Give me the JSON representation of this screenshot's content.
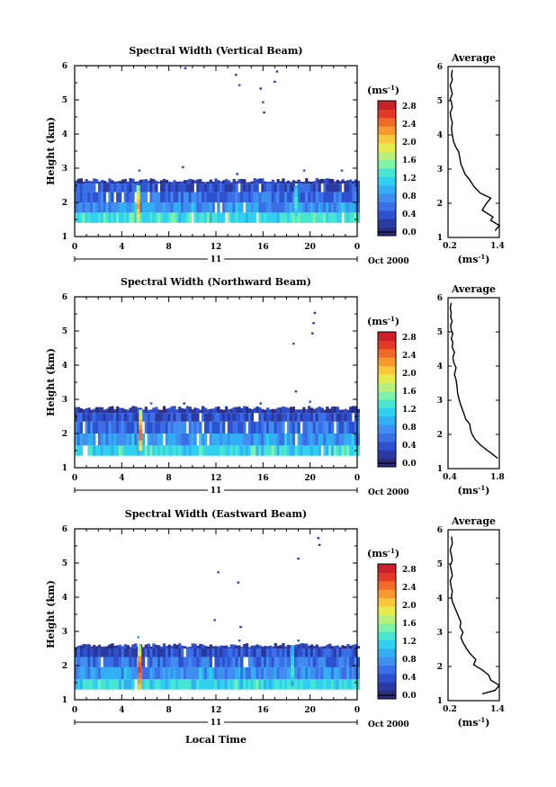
{
  "x_axis_label": "Local Time",
  "date_label": "Oct 2000",
  "day_label": "11",
  "colorbar_unit": "(ms",
  "unit_sup": "-1",
  "unit_close": ")",
  "average_title": "Average",
  "panels": [
    {
      "title": "Spectral Width (Vertical Beam)",
      "ylabel": "Height (km)",
      "cbar_ticks": [
        "2.8",
        "2.4",
        "2.0",
        "1.6",
        "1.2",
        "0.8",
        "0.4",
        "0.0"
      ],
      "avg_ticks": [
        "0.2",
        "1.4"
      ]
    },
    {
      "title": "Spectral Width (Northward Beam)",
      "ylabel": "Height (km)",
      "cbar_ticks": [
        "2.8",
        "2.4",
        "2.0",
        "1.6",
        "1.2",
        "0.8",
        "0.4",
        "0.0"
      ],
      "avg_ticks": [
        "0.4",
        "1.8"
      ]
    },
    {
      "title": "Spectral Width (Eastward Beam)",
      "ylabel": "Height (km)",
      "cbar_ticks": [
        "2.8",
        "2.4",
        "2.0",
        "1.6",
        "1.2",
        "0.8",
        "0.4",
        "0.0"
      ],
      "avg_ticks": [
        "0.2",
        "1.4"
      ]
    }
  ],
  "colors": {
    "scale": [
      "#2b2c7e",
      "#2b3aa0",
      "#2e52cf",
      "#3a6fe8",
      "#3f8ef0",
      "#32aef2",
      "#2fd0f0",
      "#46e6d2",
      "#7ff2a8",
      "#b7f07a",
      "#e7ec4d",
      "#f8c83a",
      "#f79a2e",
      "#f06a2a",
      "#e33a28",
      "#c9202a"
    ]
  },
  "chart_data": [
    {
      "type": "heatmap",
      "title": "Spectral Width (Vertical Beam)",
      "xlabel": "",
      "ylabel": "Height (km)",
      "xlim": [
        0,
        24
      ],
      "ylim": [
        1,
        6
      ],
      "x_ticks": [
        "0",
        "4",
        "8",
        "12",
        "16",
        "20",
        "0"
      ],
      "y_ticks": [
        "1",
        "2",
        "3",
        "4",
        "5",
        "6"
      ],
      "colorbar": {
        "label": "(ms-1)",
        "range": [
          0.0,
          3.0
        ],
        "ticks": [
          2.8,
          2.4,
          2.0,
          1.6,
          1.2,
          0.8,
          0.4,
          0.0
        ]
      },
      "layers": [
        {
          "height_km": [
            1.4,
            1.7
          ],
          "width_ms": 1.35
        },
        {
          "height_km": [
            1.7,
            2.0
          ],
          "width_ms": 0.9
        },
        {
          "height_km": [
            2.0,
            2.3
          ],
          "width_ms": 0.65
        },
        {
          "height_km": [
            2.3,
            2.55
          ],
          "width_ms": 0.45
        },
        {
          "height_km": [
            2.55,
            2.65
          ],
          "width_ms": 0.3
        }
      ],
      "spikes": [
        {
          "time_h": 5.4,
          "height_km": [
            1.4,
            2.5
          ],
          "width_ms": 2.3
        },
        {
          "time_h": 18.8,
          "height_km": [
            1.6,
            2.5
          ],
          "width_ms": 1.5
        }
      ],
      "isolated": [
        {
          "time_h": 9.4,
          "height_km": 5.9,
          "width_ms": 0.3
        },
        {
          "time_h": 13.7,
          "height_km": 5.7,
          "width_ms": 0.35
        },
        {
          "time_h": 14.0,
          "height_km": 5.4,
          "width_ms": 0.4
        },
        {
          "time_h": 15.8,
          "height_km": 5.3,
          "width_ms": 0.35
        },
        {
          "time_h": 16.0,
          "height_km": 4.9,
          "width_ms": 0.4
        },
        {
          "time_h": 16.1,
          "height_km": 4.6,
          "width_ms": 0.35
        },
        {
          "time_h": 17.0,
          "height_km": 5.5,
          "width_ms": 0.3
        },
        {
          "time_h": 17.2,
          "height_km": 5.8,
          "width_ms": 0.35
        },
        {
          "time_h": 5.5,
          "height_km": 2.9,
          "width_ms": 0.4
        },
        {
          "time_h": 9.2,
          "height_km": 3.0,
          "width_ms": 0.4
        },
        {
          "time_h": 13.8,
          "height_km": 2.8,
          "width_ms": 0.35
        },
        {
          "time_h": 19.5,
          "height_km": 2.9,
          "width_ms": 0.4
        },
        {
          "time_h": 22.7,
          "height_km": 2.9,
          "width_ms": 0.4
        }
      ]
    },
    {
      "type": "heatmap",
      "title": "Spectral Width (Northward Beam)",
      "xlabel": "",
      "ylabel": "Height (km)",
      "xlim": [
        0,
        24
      ],
      "ylim": [
        1,
        6
      ],
      "x_ticks": [
        "0",
        "4",
        "8",
        "12",
        "16",
        "20",
        "0"
      ],
      "y_ticks": [
        "1",
        "2",
        "3",
        "4",
        "5",
        "6"
      ],
      "colorbar": {
        "label": "(ms-1)",
        "range": [
          0.0,
          3.0
        ],
        "ticks": [
          2.8,
          2.4,
          2.0,
          1.6,
          1.2,
          0.8,
          0.4,
          0.0
        ]
      },
      "layers": [
        {
          "height_km": [
            1.35,
            1.65
          ],
          "width_ms": 1.3
        },
        {
          "height_km": [
            1.65,
            2.0
          ],
          "width_ms": 0.9
        },
        {
          "height_km": [
            2.0,
            2.35
          ],
          "width_ms": 0.65
        },
        {
          "height_km": [
            2.35,
            2.6
          ],
          "width_ms": 0.45
        },
        {
          "height_km": [
            2.6,
            2.75
          ],
          "width_ms": 0.3
        }
      ],
      "spikes": [
        {
          "time_h": 5.6,
          "height_km": [
            1.5,
            2.7
          ],
          "width_ms": 2.6
        }
      ],
      "isolated": [
        {
          "time_h": 20.4,
          "height_km": 5.5,
          "width_ms": 0.3
        },
        {
          "time_h": 20.3,
          "height_km": 5.2,
          "width_ms": 0.35
        },
        {
          "time_h": 20.2,
          "height_km": 4.9,
          "width_ms": 0.3
        },
        {
          "time_h": 18.6,
          "height_km": 4.6,
          "width_ms": 0.4
        },
        {
          "time_h": 18.8,
          "height_km": 3.2,
          "width_ms": 0.35
        },
        {
          "time_h": 6.5,
          "height_km": 2.85,
          "width_ms": 0.4
        },
        {
          "time_h": 9.3,
          "height_km": 2.85,
          "width_ms": 0.35
        },
        {
          "time_h": 15.8,
          "height_km": 2.85,
          "width_ms": 0.35
        },
        {
          "time_h": 20.0,
          "height_km": 2.9,
          "width_ms": 0.4
        }
      ]
    },
    {
      "type": "heatmap",
      "title": "Spectral Width (Eastward Beam)",
      "xlabel": "Local Time",
      "ylabel": "Height (km)",
      "xlim": [
        0,
        24
      ],
      "ylim": [
        1,
        6
      ],
      "x_ticks": [
        "0",
        "4",
        "8",
        "12",
        "16",
        "20",
        "0"
      ],
      "y_ticks": [
        "1",
        "2",
        "3",
        "4",
        "5",
        "6"
      ],
      "colorbar": {
        "label": "(ms-1)",
        "range": [
          0.0,
          3.0
        ],
        "ticks": [
          2.8,
          2.4,
          2.0,
          1.6,
          1.2,
          0.8,
          0.4,
          0.0
        ]
      },
      "layers": [
        {
          "height_km": [
            1.3,
            1.6
          ],
          "width_ms": 1.3
        },
        {
          "height_km": [
            1.6,
            1.95
          ],
          "width_ms": 0.9
        },
        {
          "height_km": [
            1.95,
            2.25
          ],
          "width_ms": 0.65
        },
        {
          "height_km": [
            2.25,
            2.5
          ],
          "width_ms": 0.45
        },
        {
          "height_km": [
            2.5,
            2.6
          ],
          "width_ms": 0.3
        }
      ],
      "spikes": [
        {
          "time_h": 5.5,
          "height_km": [
            1.3,
            2.6
          ],
          "width_ms": 2.7
        },
        {
          "time_h": 18.5,
          "height_km": [
            1.4,
            2.6
          ],
          "width_ms": 1.4
        }
      ],
      "isolated": [
        {
          "time_h": 20.7,
          "height_km": 5.7,
          "width_ms": 0.3
        },
        {
          "time_h": 20.8,
          "height_km": 5.5,
          "width_ms": 0.35
        },
        {
          "time_h": 19.0,
          "height_km": 5.1,
          "width_ms": 0.35
        },
        {
          "time_h": 12.2,
          "height_km": 4.7,
          "width_ms": 0.4
        },
        {
          "time_h": 13.9,
          "height_km": 4.4,
          "width_ms": 0.35
        },
        {
          "time_h": 11.9,
          "height_km": 3.3,
          "width_ms": 0.4
        },
        {
          "time_h": 14.1,
          "height_km": 3.1,
          "width_ms": 0.35
        },
        {
          "time_h": 5.4,
          "height_km": 2.8,
          "width_ms": 0.9
        },
        {
          "time_h": 14.0,
          "height_km": 2.7,
          "width_ms": 0.4
        },
        {
          "time_h": 19.0,
          "height_km": 2.7,
          "width_ms": 0.4
        }
      ]
    },
    {
      "type": "line",
      "title": "Average",
      "xlabel": "(ms-1)",
      "ylabel": "",
      "xlim": [
        0.2,
        1.4
      ],
      "ylim": [
        1,
        6
      ],
      "x": [
        1.3,
        1.4,
        1.2,
        1.25,
        1.0,
        1.1,
        1.2,
        0.95,
        0.8,
        0.7,
        0.6,
        0.55,
        0.5,
        0.48,
        0.45,
        0.38,
        0.33,
        0.3,
        0.28,
        0.3,
        0.27,
        0.25,
        0.3,
        0.28,
        0.25,
        0.3,
        0.27,
        0.25,
        0.3,
        0.28,
        0.3
      ],
      "y": [
        1.2,
        1.35,
        1.5,
        1.6,
        1.8,
        2.0,
        2.15,
        2.3,
        2.5,
        2.7,
        2.85,
        3.0,
        3.15,
        3.3,
        3.5,
        3.65,
        3.8,
        4.0,
        4.2,
        4.35,
        4.5,
        4.65,
        4.8,
        4.95,
        5.05,
        5.2,
        5.35,
        5.45,
        5.6,
        5.75,
        5.9
      ]
    },
    {
      "type": "line",
      "title": "Average",
      "xlabel": "(ms-1)",
      "ylabel": "",
      "xlim": [
        0.2,
        1.8
      ],
      "ylim": [
        1,
        6
      ],
      "x": [
        1.75,
        1.55,
        1.4,
        1.2,
        1.05,
        0.95,
        0.9,
        0.88,
        0.75,
        0.7,
        0.62,
        0.55,
        0.5,
        0.48,
        0.45,
        0.4,
        0.45,
        0.38,
        0.35,
        0.4,
        0.33,
        0.35,
        0.3,
        0.35,
        0.3,
        0.28,
        0.33,
        0.28,
        0.3,
        0.27,
        0.3
      ],
      "y": [
        1.3,
        1.45,
        1.55,
        1.7,
        1.85,
        2.0,
        2.15,
        2.3,
        2.45,
        2.6,
        2.8,
        3.0,
        3.2,
        3.4,
        3.6,
        3.75,
        3.95,
        4.1,
        4.25,
        4.4,
        4.55,
        4.7,
        4.8,
        4.95,
        5.05,
        5.2,
        5.3,
        5.45,
        5.55,
        5.7,
        5.85
      ]
    },
    {
      "type": "line",
      "title": "Average",
      "xlabel": "(ms-1)",
      "ylabel": "",
      "xlim": [
        0.2,
        1.4
      ],
      "ylim": [
        1,
        6
      ],
      "x": [
        1.0,
        1.3,
        1.4,
        1.2,
        1.15,
        1.0,
        0.8,
        0.85,
        0.7,
        0.62,
        0.55,
        0.5,
        0.55,
        0.48,
        0.5,
        0.45,
        0.4,
        0.35,
        0.3,
        0.28,
        0.3,
        0.27,
        0.25,
        0.3,
        0.28,
        0.25,
        0.3,
        0.28,
        0.25,
        0.3,
        0.28
      ],
      "y": [
        1.2,
        1.3,
        1.45,
        1.6,
        1.75,
        1.9,
        2.05,
        2.2,
        2.4,
        2.55,
        2.7,
        2.85,
        3.0,
        3.15,
        3.3,
        3.45,
        3.6,
        3.75,
        3.9,
        4.05,
        4.2,
        4.35,
        4.5,
        4.65,
        4.8,
        4.95,
        5.1,
        5.25,
        5.4,
        5.6,
        5.8
      ]
    }
  ]
}
